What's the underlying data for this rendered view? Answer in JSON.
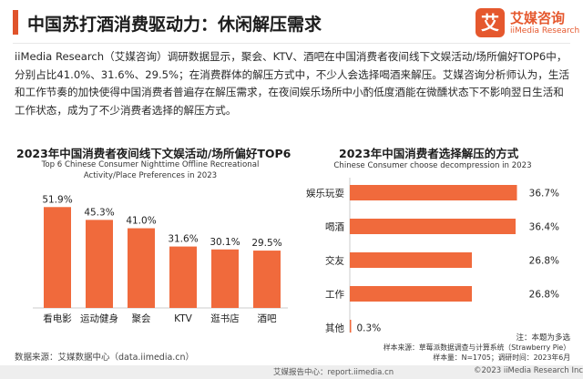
{
  "header": {
    "title": "中国苏打酒消费驱动力：休闲解压需求",
    "logo_mark": "艾",
    "logo_cn": "艾媒咨询",
    "logo_en": "iiMedia Research"
  },
  "intro_text": "iiMedia Research（艾媒咨询）调研数据显示，聚会、KTV、酒吧在中国消费者夜间线下文娱活动/场所偏好TOP6中，分别占比41.0%、31.6%、29.5%；在消费群体的解压方式中，不少人会选择喝酒来解压。艾媒咨询分析师认为，生活和工作节奏的加快使得中国消费者普遍存在解压需求，在夜间娱乐场所中小酌低度酒能在微醺状态下不影响翌日生活和工作状态，成为了不少消费者选择的解压方式。",
  "chart_data": [
    {
      "type": "bar",
      "title": "2023年中国消费者夜间线下文娱活动/场所偏好TOP6",
      "subtitle": "Top 6 Chinese Consumer Nighttime Offline Recreational Activity/Place Preferences in 2023",
      "categories": [
        "看电影",
        "运动健身",
        "聚会",
        "KTV",
        "逛书店",
        "酒吧"
      ],
      "values": [
        51.9,
        45.3,
        41.0,
        31.6,
        30.1,
        29.5
      ],
      "value_labels": [
        "51.9%",
        "45.3%",
        "41.0%",
        "31.6%",
        "30.1%",
        "29.5%"
      ],
      "ylim": [
        0,
        60
      ],
      "grid": false,
      "color": "#f06a3c"
    },
    {
      "type": "bar",
      "orientation": "horizontal",
      "title": "2023年中国消费者选择解压的方式",
      "subtitle": "Chinese Consumer choose decompression in 2023",
      "categories": [
        "娱乐玩耍",
        "喝酒",
        "交友",
        "工作",
        "其他"
      ],
      "values": [
        36.7,
        36.4,
        26.8,
        26.8,
        0.3
      ],
      "value_labels": [
        "36.7%",
        "36.4%",
        "26.8%",
        "26.8%",
        "0.3%"
      ],
      "xlim": [
        0,
        40
      ],
      "grid": false,
      "color": "#f06a3c"
    }
  ],
  "notes": {
    "multi_choice": "注：本题为多选",
    "sample_source": "样本来源：草莓派数据调查与计算系统（Strawberry Pie）",
    "sample_size": "样本量：N=1705；调研时间：2023年6月"
  },
  "data_source": "数据来源：艾媒数据中心（data.iimedia.cn）",
  "footer": {
    "report": "艾媒报告中心：report.iimedia.cn",
    "copyright": "©2023  iiMedia Research  Inc"
  }
}
